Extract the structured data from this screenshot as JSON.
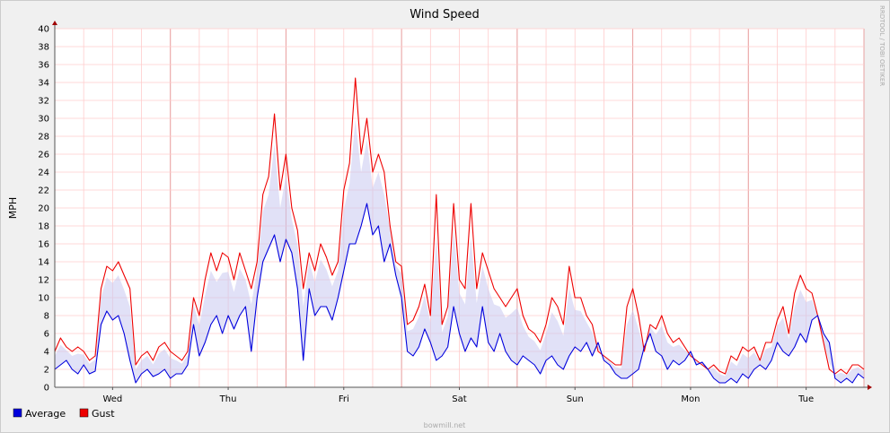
{
  "chart_data": {
    "type": "line",
    "title": "Wind Speed",
    "ylabel": "MPH",
    "xlabel": "",
    "ylim": [
      0,
      40
    ],
    "yticks": [
      0,
      2,
      4,
      6,
      8,
      10,
      12,
      14,
      16,
      18,
      20,
      22,
      24,
      26,
      28,
      30,
      32,
      34,
      36,
      38,
      40
    ],
    "xlim_days": [
      0,
      7
    ],
    "x_tick_labels": [
      {
        "label": "Wed",
        "day": 0.5
      },
      {
        "label": "Thu",
        "day": 1.5
      },
      {
        "label": "Fri",
        "day": 2.5
      },
      {
        "label": "Sat",
        "day": 3.5
      },
      {
        "label": "Sun",
        "day": 4.5
      },
      {
        "label": "Mon",
        "day": 5.5
      },
      {
        "label": "Tue",
        "day": 6.5
      }
    ],
    "grid": true,
    "legend_position": "bottom-left",
    "watermark": "RRDTOOL / TOBI OETIKER",
    "footer": "bowmill.net",
    "colors": {
      "background": "#f0f0f0",
      "plot_bg": "#ffffff",
      "grid_minor": "#ffcccc",
      "grid_major": "#e8a0a0",
      "average": "#0000dd",
      "gust": "#ee0000",
      "band": "#c8c8f0",
      "axis": "#555555",
      "arrow": "#a00000"
    },
    "series": [
      {
        "name": "Average",
        "color": "#0000dd",
        "x": [
          0.0,
          0.05,
          0.1,
          0.15,
          0.2,
          0.25,
          0.3,
          0.35,
          0.4,
          0.45,
          0.5,
          0.55,
          0.6,
          0.65,
          0.7,
          0.75,
          0.8,
          0.85,
          0.9,
          0.95,
          1.0,
          1.05,
          1.1,
          1.15,
          1.2,
          1.25,
          1.3,
          1.35,
          1.4,
          1.45,
          1.5,
          1.55,
          1.6,
          1.65,
          1.7,
          1.75,
          1.8,
          1.85,
          1.9,
          1.95,
          2.0,
          2.05,
          2.1,
          2.15,
          2.2,
          2.25,
          2.3,
          2.35,
          2.4,
          2.45,
          2.5,
          2.55,
          2.6,
          2.65,
          2.7,
          2.75,
          2.8,
          2.85,
          2.9,
          2.95,
          3.0,
          3.05,
          3.1,
          3.15,
          3.2,
          3.25,
          3.3,
          3.35,
          3.4,
          3.45,
          3.5,
          3.55,
          3.6,
          3.65,
          3.7,
          3.75,
          3.8,
          3.85,
          3.9,
          3.95,
          4.0,
          4.05,
          4.1,
          4.15,
          4.2,
          4.25,
          4.3,
          4.35,
          4.4,
          4.45,
          4.5,
          4.55,
          4.6,
          4.65,
          4.7,
          4.75,
          4.8,
          4.85,
          4.9,
          4.95,
          5.0,
          5.05,
          5.1,
          5.15,
          5.2,
          5.25,
          5.3,
          5.35,
          5.4,
          5.45,
          5.5,
          5.55,
          5.6,
          5.65,
          5.7,
          5.75,
          5.8,
          5.85,
          5.9,
          5.95,
          6.0,
          6.05,
          6.1,
          6.15,
          6.2,
          6.25,
          6.3,
          6.35,
          6.4,
          6.45,
          6.5,
          6.55,
          6.6,
          6.65,
          6.7,
          6.75,
          6.8,
          6.85,
          6.9,
          6.95,
          7.0
        ],
        "values": [
          2.0,
          2.5,
          3.0,
          2.0,
          1.5,
          2.5,
          1.5,
          1.8,
          7.0,
          8.5,
          7.5,
          8.0,
          6.0,
          3.0,
          0.5,
          1.5,
          2.0,
          1.2,
          1.5,
          2.0,
          1.0,
          1.5,
          1.5,
          2.5,
          7.0,
          3.5,
          5.0,
          7.0,
          8.0,
          6.0,
          8.0,
          6.5,
          8.0,
          9.0,
          4.0,
          10.0,
          14.0,
          15.5,
          17.0,
          14.0,
          16.5,
          15.0,
          11.0,
          3.0,
          11.0,
          8.0,
          9.0,
          9.0,
          7.5,
          10.0,
          13.0,
          16.0,
          16.0,
          18.0,
          20.5,
          17.0,
          18.0,
          14.0,
          16.0,
          12.5,
          10.0,
          4.0,
          3.5,
          4.5,
          6.5,
          5.0,
          3.0,
          3.5,
          4.5,
          9.0,
          6.0,
          4.0,
          5.5,
          4.5,
          9.0,
          5.0,
          4.0,
          6.0,
          4.0,
          3.0,
          2.5,
          3.5,
          3.0,
          2.5,
          1.5,
          3.0,
          3.5,
          2.5,
          2.0,
          3.5,
          4.5,
          4.0,
          5.0,
          3.5,
          5.0,
          3.0,
          2.5,
          1.5,
          1.0,
          1.0,
          1.5,
          2.0,
          4.5,
          6.0,
          4.0,
          3.5,
          2.0,
          3.0,
          2.5,
          3.0,
          4.0,
          2.5,
          2.8,
          2.0,
          1.0,
          0.5,
          0.5,
          1.0,
          0.5,
          1.5,
          1.0,
          2.0,
          2.5,
          2.0,
          3.0,
          5.0,
          4.0,
          3.5,
          4.5,
          6.0,
          5.0,
          7.5,
          8.0,
          6.0,
          5.0,
          1.0,
          0.5,
          1.0,
          0.5,
          1.5,
          1.0
        ]
      },
      {
        "name": "Gust",
        "color": "#ee0000",
        "x": [
          0.0,
          0.05,
          0.1,
          0.15,
          0.2,
          0.25,
          0.3,
          0.35,
          0.4,
          0.45,
          0.5,
          0.55,
          0.6,
          0.65,
          0.7,
          0.75,
          0.8,
          0.85,
          0.9,
          0.95,
          1.0,
          1.05,
          1.1,
          1.15,
          1.2,
          1.25,
          1.3,
          1.35,
          1.4,
          1.45,
          1.5,
          1.55,
          1.6,
          1.65,
          1.7,
          1.75,
          1.8,
          1.85,
          1.9,
          1.95,
          2.0,
          2.05,
          2.1,
          2.15,
          2.2,
          2.25,
          2.3,
          2.35,
          2.4,
          2.45,
          2.5,
          2.55,
          2.6,
          2.65,
          2.7,
          2.75,
          2.8,
          2.85,
          2.9,
          2.95,
          3.0,
          3.05,
          3.1,
          3.15,
          3.2,
          3.25,
          3.3,
          3.35,
          3.4,
          3.45,
          3.5,
          3.55,
          3.6,
          3.65,
          3.7,
          3.75,
          3.8,
          3.85,
          3.9,
          3.95,
          4.0,
          4.05,
          4.1,
          4.15,
          4.2,
          4.25,
          4.3,
          4.35,
          4.4,
          4.45,
          4.5,
          4.55,
          4.6,
          4.65,
          4.7,
          4.75,
          4.8,
          4.85,
          4.9,
          4.95,
          5.0,
          5.05,
          5.1,
          5.15,
          5.2,
          5.25,
          5.3,
          5.35,
          5.4,
          5.45,
          5.5,
          5.55,
          5.6,
          5.65,
          5.7,
          5.75,
          5.8,
          5.85,
          5.9,
          5.95,
          6.0,
          6.05,
          6.1,
          6.15,
          6.2,
          6.25,
          6.3,
          6.35,
          6.4,
          6.45,
          6.5,
          6.55,
          6.6,
          6.65,
          6.7,
          6.75,
          6.8,
          6.85,
          6.9,
          6.95,
          7.0
        ],
        "values": [
          4.0,
          5.5,
          4.5,
          4.0,
          4.5,
          4.0,
          3.0,
          3.5,
          11.0,
          13.5,
          13.0,
          14.0,
          12.5,
          11.0,
          2.5,
          3.5,
          4.0,
          3.0,
          4.5,
          5.0,
          4.0,
          3.5,
          3.0,
          4.0,
          10.0,
          8.0,
          12.0,
          15.0,
          13.0,
          15.0,
          14.5,
          12.0,
          15.0,
          13.0,
          11.0,
          14.0,
          21.5,
          23.5,
          30.5,
          22.0,
          26.0,
          20.0,
          17.5,
          11.0,
          15.0,
          13.0,
          16.0,
          14.5,
          12.5,
          14.0,
          22.0,
          25.0,
          34.5,
          26.0,
          30.0,
          24.0,
          26.0,
          24.0,
          18.0,
          14.0,
          13.5,
          7.0,
          7.5,
          9.0,
          11.5,
          8.0,
          21.5,
          7.0,
          9.0,
          20.5,
          12.0,
          11.0,
          20.5,
          11.0,
          15.0,
          13.0,
          11.0,
          10.0,
          9.0,
          10.0,
          11.0,
          8.0,
          6.5,
          6.0,
          5.0,
          7.0,
          10.0,
          9.0,
          7.0,
          13.5,
          10.0,
          10.0,
          8.0,
          7.0,
          4.0,
          3.5,
          3.0,
          2.5,
          2.5,
          9.0,
          11.0,
          8.0,
          4.0,
          7.0,
          6.5,
          8.0,
          6.0,
          5.0,
          5.5,
          4.5,
          3.5,
          3.0,
          2.5,
          2.0,
          2.5,
          1.8,
          1.5,
          3.5,
          3.0,
          4.5,
          4.0,
          4.5,
          3.0,
          5.0,
          5.0,
          7.5,
          9.0,
          6.0,
          10.5,
          12.5,
          11.0,
          10.5,
          8.0,
          5.0,
          2.0,
          1.5,
          2.0,
          1.5,
          2.5,
          2.5,
          2.0
        ]
      }
    ]
  }
}
